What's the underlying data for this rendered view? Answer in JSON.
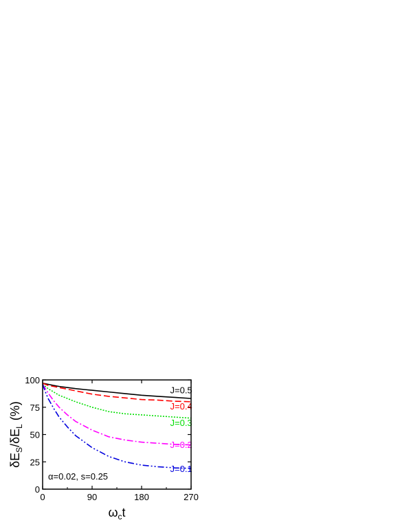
{
  "chart_data": {
    "type": "line",
    "xlabel": {
      "main": "ω",
      "sub": "c",
      "tail": "t"
    },
    "ylabel": {
      "p1": "δE",
      "s1": "S",
      "p2": "/δE",
      "s2": "L",
      "p3": " (%)"
    },
    "xlim": [
      0,
      270
    ],
    "ylim": [
      0,
      100
    ],
    "x_ticks": [
      0,
      90,
      180,
      270
    ],
    "y_ticks": [
      0,
      25,
      50,
      75,
      100
    ],
    "annotation": "α=0.02, s=0.25",
    "series": [
      {
        "name": "J=0.5",
        "color": "#000000",
        "dash": "",
        "label_xy": [
          252,
          91
        ],
        "x": [
          0,
          10,
          20,
          30,
          45,
          60,
          90,
          120,
          150,
          180,
          210,
          240,
          270
        ],
        "y": [
          97,
          96,
          95,
          94,
          93,
          92,
          90.5,
          89,
          87.5,
          86,
          85,
          84,
          83
        ]
      },
      {
        "name": "J=0.4",
        "color": "#ff0000",
        "dash": "9,4",
        "label_xy": [
          252,
          76
        ],
        "x": [
          0,
          10,
          20,
          30,
          45,
          60,
          90,
          120,
          150,
          180,
          210,
          240,
          270
        ],
        "y": [
          97,
          95,
          94,
          93,
          91.5,
          90,
          87,
          85,
          83.5,
          82,
          81.5,
          80.5,
          80
        ]
      },
      {
        "name": "J=0.3",
        "color": "#00dd00",
        "dash": "2,2",
        "label_xy": [
          252,
          61
        ],
        "x": [
          0,
          5,
          10,
          20,
          30,
          45,
          60,
          90,
          120,
          150,
          180,
          210,
          240,
          270
        ],
        "y": [
          96,
          94,
          92,
          89,
          86,
          83,
          80,
          75,
          71,
          69,
          68,
          67,
          66,
          65
        ]
      },
      {
        "name": "J=0.2",
        "color": "#ff00ff",
        "dash": "9,3,2,3",
        "label_xy": [
          252,
          41
        ],
        "x": [
          0,
          5,
          10,
          20,
          30,
          45,
          60,
          90,
          120,
          150,
          180,
          210,
          240,
          270
        ],
        "y": [
          96,
          92,
          88,
          81,
          75,
          68,
          62,
          54,
          48,
          45,
          43,
          42,
          41,
          40.5
        ]
      },
      {
        "name": "J=0.1",
        "color": "#0000dd",
        "dash": "9,3,2,3,2,3",
        "label_xy": [
          252,
          19
        ],
        "x": [
          0,
          5,
          10,
          20,
          30,
          45,
          60,
          90,
          120,
          150,
          180,
          210,
          240,
          270
        ],
        "y": [
          96,
          89,
          83,
          74,
          66,
          57,
          49,
          38,
          30,
          25,
          22,
          20.5,
          19.5,
          19
        ]
      }
    ]
  }
}
